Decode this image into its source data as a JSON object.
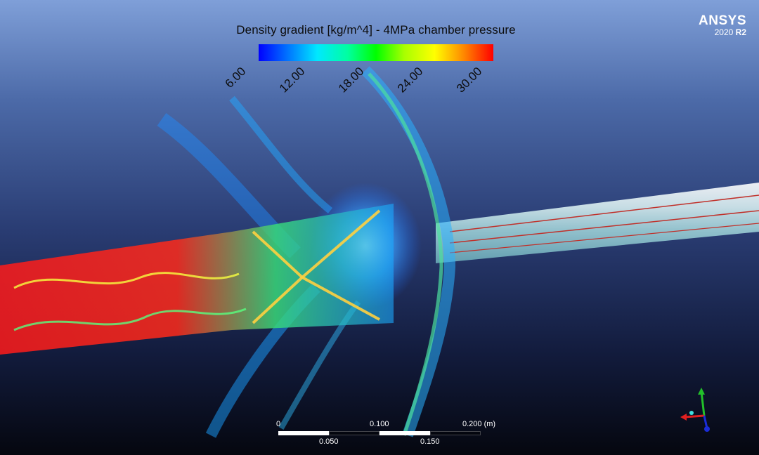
{
  "legend": {
    "title": "Density gradient [kg/m^4] - 4MPa chamber pressure",
    "ticks": [
      "6.00",
      "12.00",
      "18.00",
      "24.00",
      "30.00"
    ]
  },
  "logo": {
    "name": "ANSYS",
    "year": "2020",
    "release": "R2"
  },
  "scale": {
    "top_labels": [
      "0",
      "0.100",
      "0.200  (m)"
    ],
    "bottom_labels": [
      "0.050",
      "0.150"
    ]
  },
  "colors": {
    "background_top": "#7f9fd8",
    "background_bottom": "#05070f",
    "map_low": "#0000ff",
    "map_mid": "#00ff00",
    "map_high": "#ff0000"
  },
  "icons": {
    "axis_triad": "xyz-axes-icon",
    "logo": "ansys-logo"
  }
}
